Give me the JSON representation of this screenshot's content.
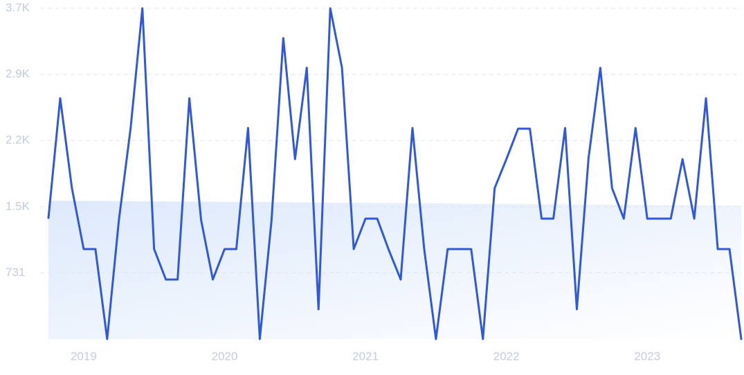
{
  "chart_data": {
    "type": "line",
    "categories": [
      null,
      null,
      null,
      "2019",
      null,
      null,
      null,
      null,
      null,
      null,
      null,
      null,
      null,
      null,
      null,
      "2020",
      null,
      null,
      null,
      null,
      null,
      null,
      null,
      null,
      null,
      null,
      null,
      "2021",
      null,
      null,
      null,
      null,
      null,
      null,
      null,
      null,
      null,
      null,
      null,
      "2022",
      null,
      null,
      null,
      null,
      null,
      null,
      null,
      null,
      null,
      null,
      null,
      "2023",
      null,
      null,
      null,
      null,
      null,
      null,
      null,
      null
    ],
    "values": [
      1338,
      2661,
      1667,
      994,
      994,
      0,
      1315,
      2332,
      3655,
      994,
      658,
      658,
      2661,
      1315,
      658,
      994,
      994,
      2332,
      0,
      1315,
      3326,
      1988,
      2997,
      329,
      3655,
      2997,
      994,
      1330,
      1330,
      979,
      658,
      2332,
      994,
      0,
      994,
      994,
      994,
      0,
      1667,
      1988,
      2325,
      2325,
      1330,
      1330,
      2332,
      329,
      2003,
      2997,
      1667,
      1330,
      2332,
      1330,
      1330,
      1330,
      1988,
      1330,
      2661,
      994,
      994,
      0
    ],
    "color": "#2f58dd",
    "ylim": [
      0,
      3655
    ],
    "yticks": [
      {
        "value": 731,
        "label": "731"
      },
      {
        "value": 1462,
        "label": "1.5K"
      },
      {
        "value": 2193,
        "label": "2.2K"
      },
      {
        "value": 2924,
        "label": "2.9K"
      },
      {
        "value": 3655,
        "label": "3.7K"
      }
    ],
    "grid": true
  }
}
